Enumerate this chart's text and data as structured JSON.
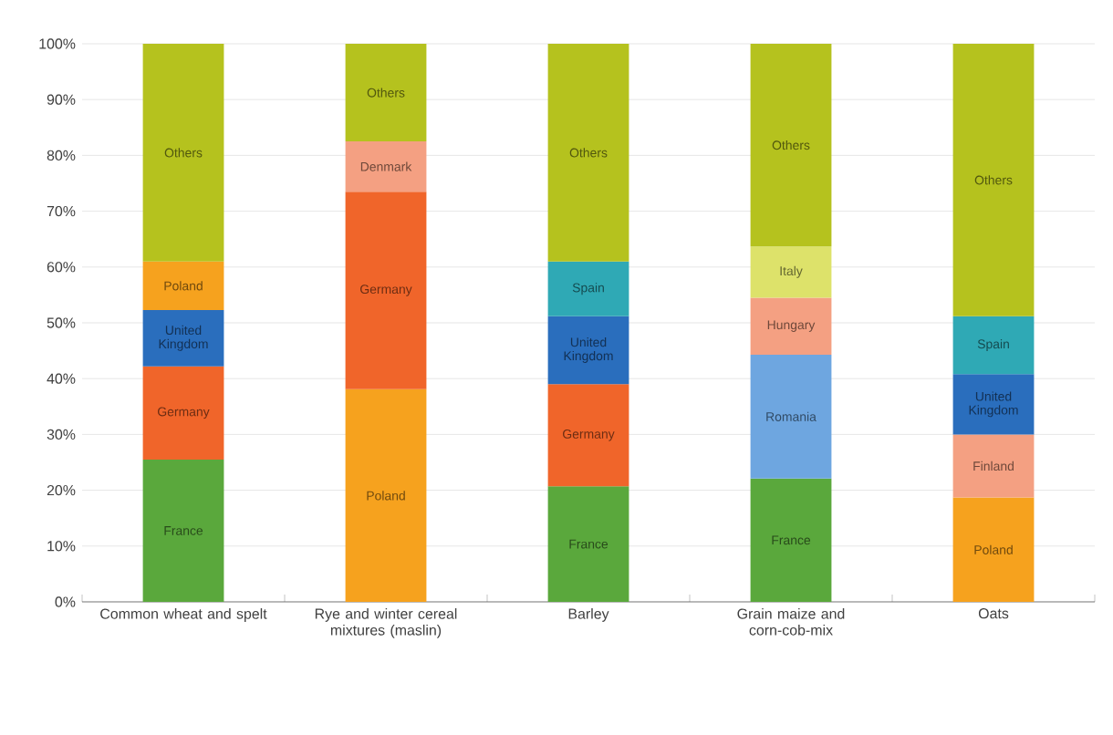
{
  "chart_data": {
    "type": "bar",
    "stacked": true,
    "categories": [
      "Common wheat and spelt",
      "Rye and winter cereal mixtures (maslin)",
      "Barley",
      "Grain maize and corn-cob-mix",
      "Oats"
    ],
    "series": [
      {
        "name": "France",
        "color": "#5aa83c",
        "values": [
          25.5,
          null,
          20.7,
          22.1,
          null
        ]
      },
      {
        "name": "Poland",
        "color": "#f6a21e",
        "values": [
          null,
          38.1,
          null,
          null,
          18.7
        ]
      },
      {
        "name": "Romania",
        "color": "#6ea6e0",
        "values": [
          null,
          null,
          null,
          22.2,
          null
        ]
      },
      {
        "name": "Germany",
        "color": "#f0652a",
        "values": [
          16.7,
          35.4,
          18.3,
          null,
          null
        ]
      },
      {
        "name": "Finland",
        "color": "#f4a082",
        "values": [
          null,
          null,
          null,
          null,
          11.3
        ]
      },
      {
        "name": "Hungary",
        "color": "#f4a082",
        "values": [
          null,
          null,
          null,
          10.2,
          null
        ]
      },
      {
        "name": "United Kingdom",
        "color": "#2a6ebd",
        "values": [
          10.1,
          null,
          12.2,
          null,
          10.8
        ]
      },
      {
        "name": "Denmark",
        "color": "#f4a082",
        "values": [
          null,
          9.0,
          null,
          null,
          null
        ]
      },
      {
        "name": "Italy",
        "color": "#dde26a",
        "values": [
          null,
          null,
          null,
          9.2,
          null
        ]
      },
      {
        "name": "Spain",
        "color": "#2fa9b5",
        "values": [
          null,
          null,
          9.8,
          null,
          10.4
        ]
      },
      {
        "name": "Poland",
        "color": "#f6a21e",
        "values": [
          8.7,
          null,
          null,
          null,
          null
        ]
      },
      {
        "name": "Others",
        "color": "#b5c21e",
        "values": [
          39.0,
          17.5,
          39.0,
          36.3,
          48.8
        ]
      }
    ],
    "ylim": [
      0,
      100
    ],
    "yticks": [
      {
        "value": 0,
        "label": "0%"
      },
      {
        "value": 10,
        "label": "10%"
      },
      {
        "value": 20,
        "label": "20%"
      },
      {
        "value": 30,
        "label": "30%"
      },
      {
        "value": 40,
        "label": "40%"
      },
      {
        "value": 50,
        "label": "50%"
      },
      {
        "value": 60,
        "label": "60%"
      },
      {
        "value": 70,
        "label": "70%"
      },
      {
        "value": 80,
        "label": "80%"
      },
      {
        "value": 90,
        "label": "90%"
      },
      {
        "value": 100,
        "label": "100%"
      }
    ],
    "grid": "y"
  }
}
